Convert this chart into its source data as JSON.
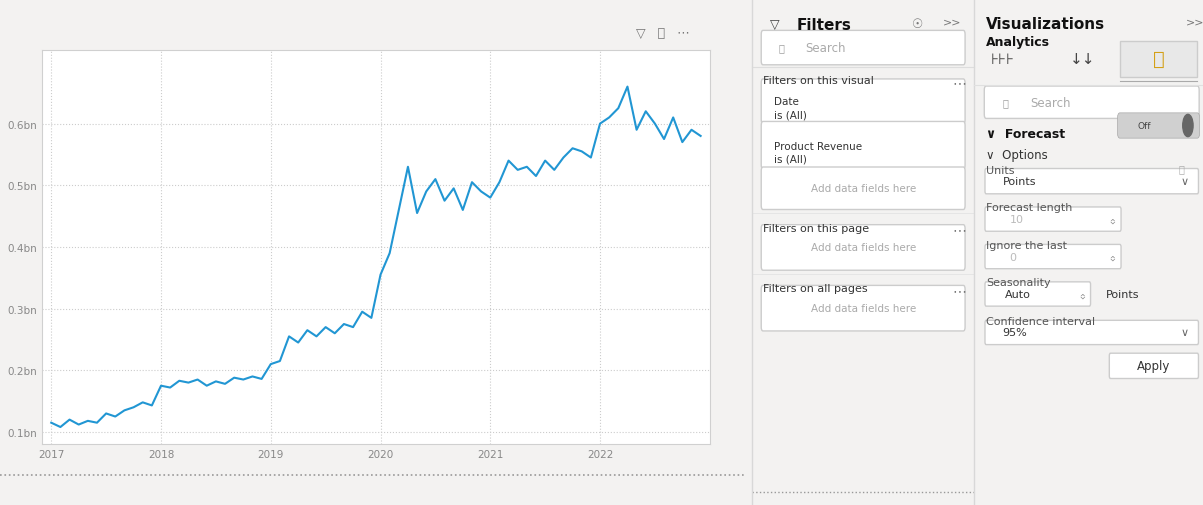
{
  "chart_bg": "#ffffff",
  "page_bg": "#f3f2f1",
  "line_color": "#2196d3",
  "line_width": 1.5,
  "grid_color": "#cccccc",
  "ytick_labels": [
    "0.1bn",
    "0.2bn",
    "0.3bn",
    "0.4bn",
    "0.5bn",
    "0.6bn"
  ],
  "ytick_values": [
    0.1,
    0.2,
    0.3,
    0.4,
    0.5,
    0.6
  ],
  "xtick_labels": [
    "2017",
    "2018",
    "2019",
    "2020",
    "2021",
    "2022"
  ],
  "xtick_positions": [
    0,
    12,
    24,
    36,
    48,
    60
  ],
  "ylim": [
    0.08,
    0.72
  ],
  "xlim": [
    -1,
    72
  ],
  "y_values": [
    0.115,
    0.108,
    0.12,
    0.112,
    0.118,
    0.115,
    0.13,
    0.125,
    0.135,
    0.14,
    0.148,
    0.143,
    0.175,
    0.172,
    0.183,
    0.18,
    0.185,
    0.175,
    0.182,
    0.178,
    0.188,
    0.185,
    0.19,
    0.186,
    0.21,
    0.215,
    0.255,
    0.245,
    0.265,
    0.255,
    0.27,
    0.26,
    0.275,
    0.27,
    0.295,
    0.285,
    0.355,
    0.39,
    0.46,
    0.53,
    0.455,
    0.49,
    0.51,
    0.475,
    0.495,
    0.46,
    0.505,
    0.49,
    0.48,
    0.505,
    0.54,
    0.525,
    0.53,
    0.515,
    0.54,
    0.525,
    0.545,
    0.56,
    0.555,
    0.545,
    0.6,
    0.61,
    0.625,
    0.66,
    0.59,
    0.62,
    0.6,
    0.575,
    0.61,
    0.57,
    0.59,
    0.58
  ],
  "filters_title": "Filters",
  "visualizations_title": "Visualizations",
  "analytics_label": "Analytics",
  "forecast_label": "Forecast",
  "options_label": "Options",
  "units_label": "Units",
  "units_value": "Points",
  "forecast_length_label": "Forecast length",
  "forecast_length_value": "10",
  "ignore_last_label": "Ignore the last",
  "ignore_last_value": "0",
  "seasonality_label": "Seasonality",
  "seasonality_value": "Auto",
  "seasonality_unit": "Points",
  "confidence_label": "Confidence interval",
  "confidence_value": "95%",
  "search_placeholder": "Search",
  "filters_on_visual": "Filters on this visual",
  "filters_on_page": "Filters on this page",
  "filters_on_all": "Filters on all pages",
  "date_filter": "Date\nis (All)",
  "revenue_filter": "Product Revenue\nis (All)",
  "add_fields": "Add data fields here",
  "apply_label": "Apply",
  "off_label": "Off",
  "dotted_bottom_line_color": "#999999"
}
